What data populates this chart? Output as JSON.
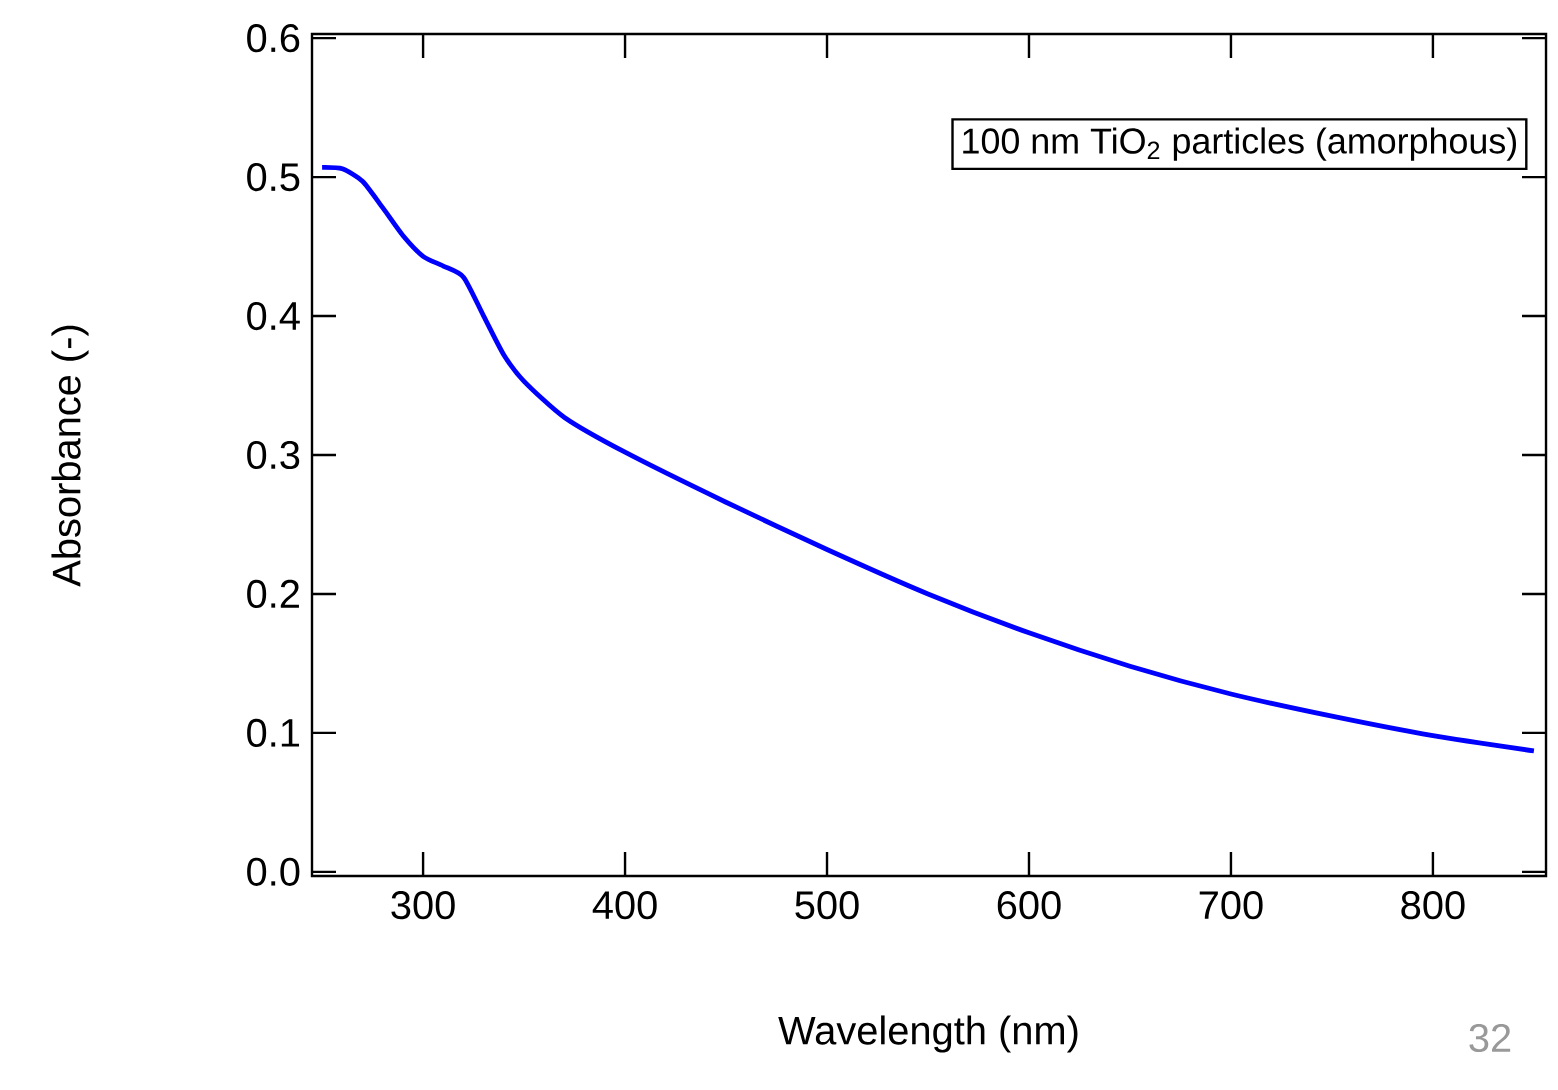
{
  "chart_data": {
    "type": "line",
    "xlabel": "Wavelength (nm)",
    "ylabel": "Absorbance (-)",
    "annotations": [
      "100 nm TiO$_{2}$ particles (amorphous)",
      "32"
    ],
    "xlim": [
      245,
      856
    ],
    "ylim": [
      -0.003,
      0.603
    ],
    "xticks": [
      300,
      400,
      500,
      600,
      700,
      800
    ],
    "yticks": [
      {
        "value": 0,
        "label": "0.0"
      },
      0.1,
      0.2,
      0.3,
      0.4,
      0.5,
      0.6
    ],
    "grid": false,
    "marker": "none",
    "line_style": "solid",
    "x": [
      250,
      260,
      270,
      280,
      290,
      300,
      310,
      320,
      330,
      340,
      350,
      370,
      400,
      450,
      500,
      550,
      600,
      650,
      700,
      750,
      800,
      850
    ],
    "series": [
      {
        "color": "#0000ff",
        "values": [
          0.507,
          0.506,
          0.497,
          0.478,
          0.458,
          0.443,
          0.436,
          0.428,
          0.4,
          0.372,
          0.353,
          0.327,
          0.302,
          0.266,
          0.232,
          0.2,
          0.172,
          0.148,
          0.128,
          0.112,
          0.098,
          0.087
        ]
      }
    ]
  }
}
